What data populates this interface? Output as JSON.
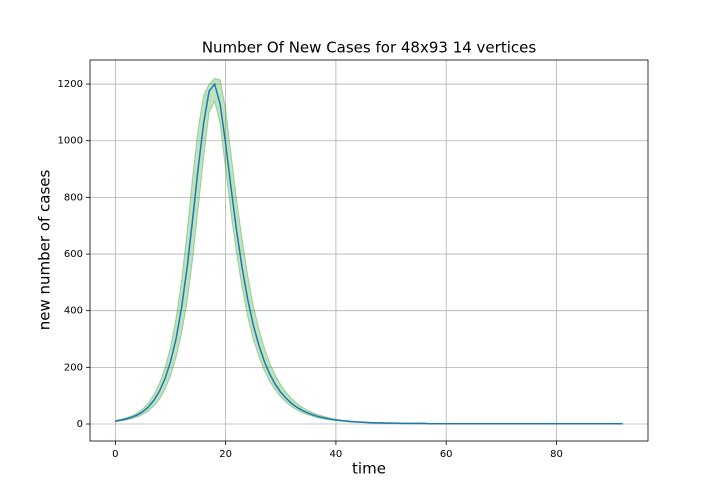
{
  "chart_data": {
    "type": "line",
    "title": "Number Of New Cases for 48x93 14 vertices",
    "x_label": "time",
    "y_label": "new number of cases",
    "x": [
      0,
      1,
      2,
      3,
      4,
      5,
      6,
      7,
      8,
      9,
      10,
      11,
      12,
      13,
      14,
      15,
      16,
      17,
      18,
      19,
      20,
      21,
      22,
      23,
      24,
      25,
      26,
      27,
      28,
      29,
      30,
      31,
      32,
      33,
      34,
      35,
      36,
      37,
      38,
      39,
      40,
      41,
      42,
      43,
      44,
      45,
      46,
      47,
      48,
      49,
      50,
      51,
      52,
      53,
      54,
      55,
      56,
      57,
      58,
      59,
      60,
      61,
      62,
      63,
      64,
      65,
      66,
      67,
      68,
      69,
      70,
      71,
      72,
      73,
      74,
      75,
      76,
      77,
      78,
      79,
      80,
      81,
      82,
      83,
      84,
      85,
      86,
      87,
      88,
      89,
      90,
      91,
      92
    ],
    "series": [
      {
        "color": "#1f77b4",
        "values": [
          10,
          14,
          18,
          24,
          32,
          44,
          60,
          84,
          116,
          160,
          220,
          300,
          410,
          550,
          720,
          900,
          1060,
          1175,
          1200,
          1130,
          990,
          830,
          680,
          550,
          440,
          350,
          280,
          222,
          176,
          140,
          112,
          90,
          72,
          58,
          47,
          38,
          31,
          25,
          21,
          17,
          14,
          12,
          10,
          8,
          7,
          6,
          5,
          4,
          4,
          3,
          3,
          3,
          2,
          2,
          2,
          2,
          2,
          1,
          1,
          1,
          1,
          1,
          1,
          1,
          1,
          1,
          1,
          1,
          1,
          1,
          1,
          1,
          1,
          1,
          1,
          1,
          1,
          1,
          1,
          1,
          1,
          1,
          1,
          1,
          1,
          1,
          1,
          1,
          1,
          1,
          1,
          1,
          1
        ]
      }
    ],
    "band": {
      "color": "#2ca02c",
      "lower": [
        8,
        11,
        14,
        19,
        25,
        34,
        47,
        64,
        88,
        122,
        170,
        235,
        320,
        430,
        580,
        760,
        940,
        1100,
        1140,
        1060,
        900,
        740,
        600,
        480,
        380,
        300,
        240,
        190,
        150,
        120,
        95,
        76,
        61,
        49,
        39,
        32,
        26,
        21,
        17,
        14,
        12,
        10,
        8,
        7,
        6,
        5,
        4,
        3,
        3,
        2,
        2,
        2,
        1,
        1,
        1,
        1,
        1,
        0,
        0,
        0,
        0,
        0,
        0,
        0,
        0,
        0,
        0,
        0,
        0,
        0,
        0,
        0,
        0,
        0,
        0,
        0,
        0,
        0,
        0,
        0,
        0,
        0,
        0,
        0,
        0,
        0,
        0,
        0,
        0,
        0,
        0,
        0,
        0
      ],
      "upper": [
        12,
        16,
        22,
        29,
        39,
        54,
        74,
        104,
        144,
        198,
        272,
        372,
        505,
        675,
        870,
        1040,
        1160,
        1200,
        1220,
        1215,
        1110,
        950,
        790,
        650,
        525,
        420,
        338,
        270,
        215,
        172,
        138,
        111,
        89,
        72,
        58,
        47,
        38,
        31,
        26,
        21,
        17,
        14,
        12,
        10,
        8,
        7,
        6,
        5,
        5,
        4,
        4,
        3,
        3,
        3,
        2,
        2,
        2,
        1,
        1,
        1,
        1,
        1,
        1,
        1,
        1,
        1,
        1,
        1,
        1,
        1,
        1,
        1,
        1,
        1,
        1,
        1,
        1,
        1,
        1,
        1,
        1,
        1,
        1,
        1,
        1,
        1,
        1,
        1,
        1,
        1,
        1,
        1,
        1
      ]
    },
    "xlim": [
      -4.6,
      96.6
    ],
    "ylim": [
      -60,
      1285
    ],
    "xticks": [
      0,
      20,
      40,
      60,
      80
    ],
    "yticks": [
      0,
      200,
      400,
      600,
      800,
      1000,
      1200
    ],
    "grid": true
  }
}
